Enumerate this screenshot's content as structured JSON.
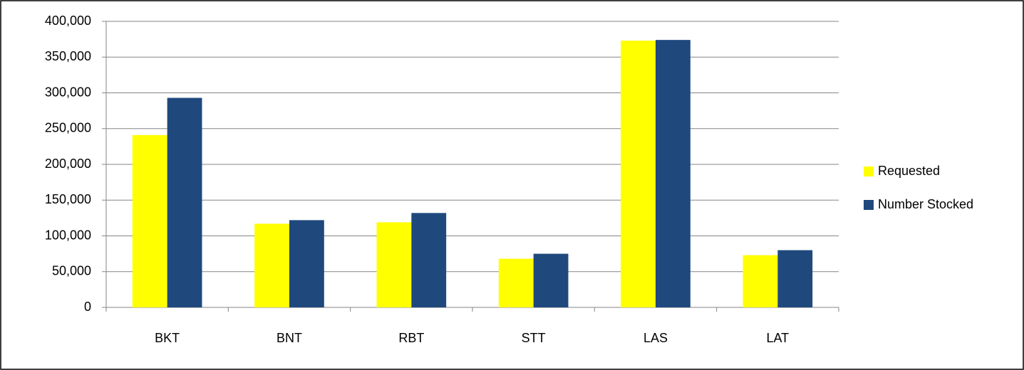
{
  "chart_data": {
    "type": "bar",
    "categories": [
      "BKT",
      "BNT",
      "RBT",
      "STT",
      "LAS",
      "LAT"
    ],
    "series": [
      {
        "name": "Requested",
        "color": "#ffff00",
        "values": [
          241000,
          117000,
          119000,
          68000,
          373000,
          73000
        ]
      },
      {
        "name": "Number Stocked",
        "color": "#1f497d",
        "values": [
          293000,
          122000,
          132000,
          75000,
          374000,
          80000
        ]
      }
    ],
    "ylim": [
      0,
      400000
    ],
    "yticks": [
      0,
      {
        "value": 50000,
        "label": "50,000"
      },
      {
        "value": 100000,
        "label": "100,000"
      },
      {
        "value": 150000,
        "label": "150,000"
      },
      {
        "value": 200000,
        "label": "200,000"
      },
      {
        "value": 250000,
        "label": "250,000"
      },
      {
        "value": 300000,
        "label": "300,000"
      },
      {
        "value": 350000,
        "label": "350,000"
      },
      {
        "value": 400000,
        "label": "400,000"
      }
    ],
    "grid": true,
    "legend": "right"
  }
}
